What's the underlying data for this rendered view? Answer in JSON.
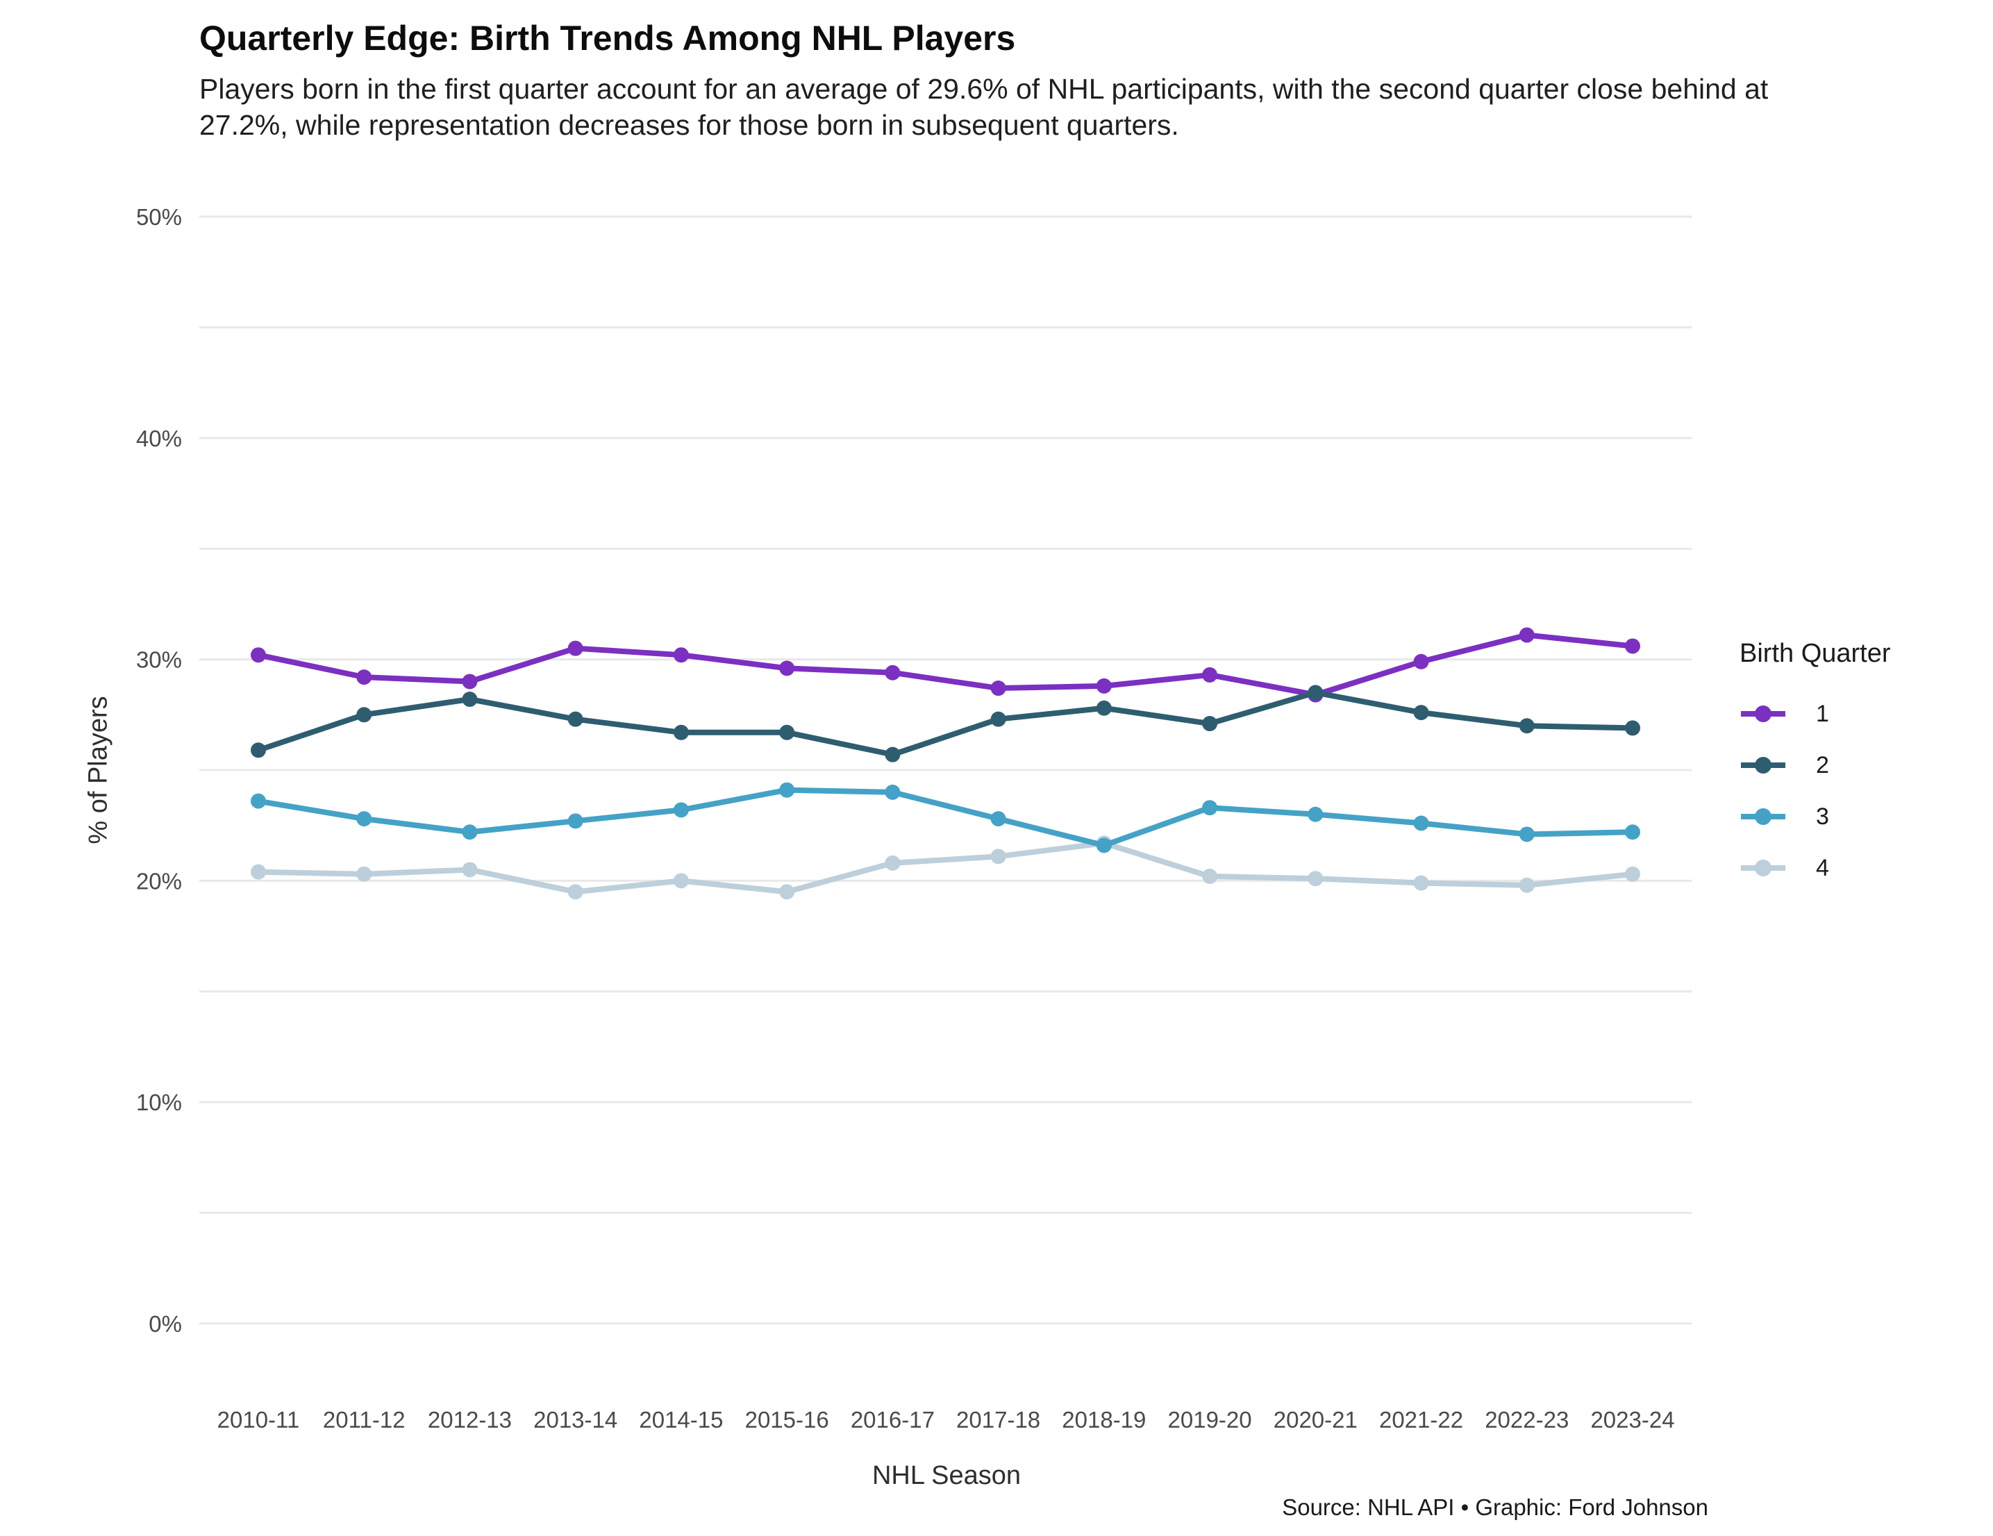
{
  "chart_data": {
    "type": "line",
    "title": "Quarterly Edge: Birth Trends Among NHL Players",
    "subtitle": "Players born in the first quarter account for an average of 29.6% of NHL participants, with the second quarter close behind at 27.2%, while representation decreases for those born in subsequent quarters.",
    "xlabel": "NHL Season",
    "ylabel": "% of Players",
    "x": [
      "2010-11",
      "2011-12",
      "2012-13",
      "2013-14",
      "2014-15",
      "2015-16",
      "2016-17",
      "2017-18",
      "2018-19",
      "2019-20",
      "2020-21",
      "2021-22",
      "2022-23",
      "2023-24"
    ],
    "series": [
      {
        "name": "1",
        "color": "#7B30C1",
        "values": [
          30.2,
          29.2,
          29.0,
          30.5,
          30.2,
          29.6,
          29.4,
          28.7,
          28.8,
          29.3,
          28.4,
          29.9,
          31.1,
          30.6
        ]
      },
      {
        "name": "2",
        "color": "#2F5D70",
        "values": [
          25.9,
          27.5,
          28.2,
          27.3,
          26.7,
          26.7,
          25.7,
          27.3,
          27.8,
          27.1,
          28.5,
          27.6,
          27.0,
          26.9
        ]
      },
      {
        "name": "3",
        "color": "#44A2C6",
        "values": [
          23.6,
          22.8,
          22.2,
          22.7,
          23.2,
          24.1,
          24.0,
          22.8,
          21.6,
          23.3,
          23.0,
          22.6,
          22.1,
          22.2
        ]
      },
      {
        "name": "4",
        "color": "#BCCFDB",
        "values": [
          20.4,
          20.3,
          20.5,
          19.5,
          20.0,
          19.5,
          20.8,
          21.1,
          21.7,
          20.2,
          20.1,
          19.9,
          19.8,
          20.3
        ]
      }
    ],
    "ylim": [
      0,
      50
    ],
    "ytick_values": [
      0,
      10,
      20,
      30,
      40,
      50
    ],
    "ytick_labels": [
      "0%",
      "10%",
      "20%",
      "30%",
      "40%",
      "50%"
    ],
    "grid_step_pct": 5,
    "grid": true,
    "legend_title": "Birth Quarter",
    "legend_position": "right",
    "source": "Source: NHL API • Graphic: Ford Johnson"
  },
  "style": {
    "grid_color": "#e8e8e8",
    "tick_label_color": "#4a4a4a",
    "line_width": 8,
    "marker_radius": 11
  }
}
